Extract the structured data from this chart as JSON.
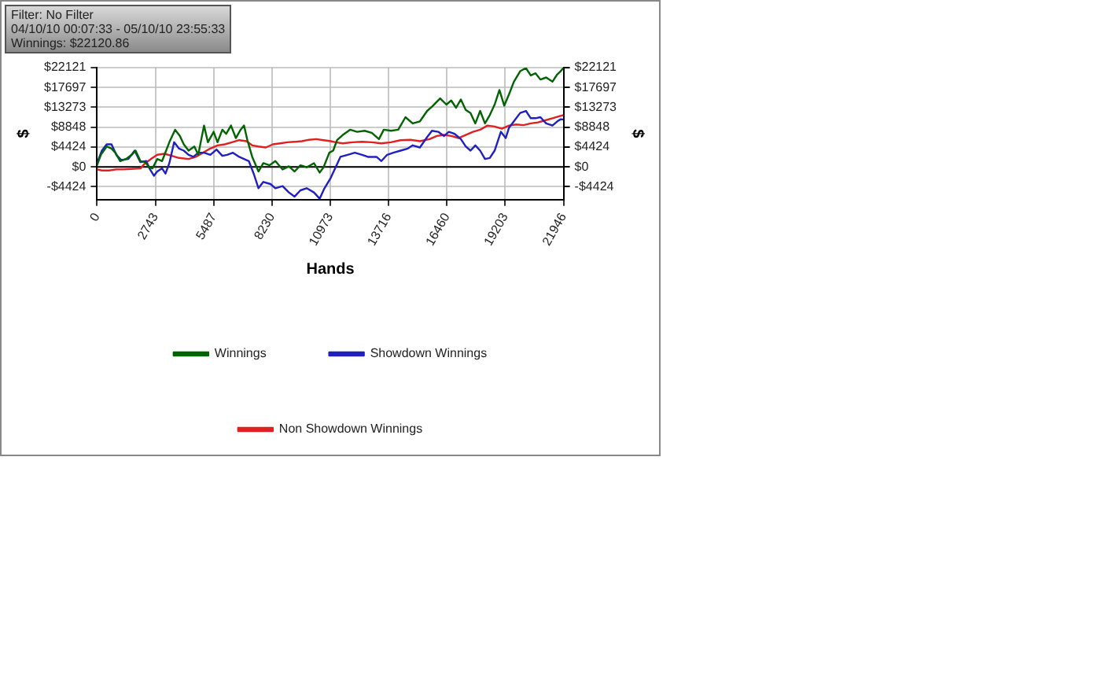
{
  "chart_data": {
    "type": "line",
    "xlabel": "Hands",
    "ylabel": "$",
    "y2label": "$",
    "annotations": [
      "Filter: No Filter",
      "04/10/10 00:07:33 - 05/10/10 23:55:33",
      "Winnings: $22120.86"
    ],
    "xlim": [
      0,
      21946
    ],
    "xticks": [
      0,
      2743,
      5487,
      8230,
      10973,
      13716,
      16460,
      19203,
      21946
    ],
    "ylim": [
      -7300,
      22121
    ],
    "yticks": [
      {
        "value": -4424,
        "label": "-$4424"
      },
      {
        "value": 0,
        "label": "$0"
      },
      {
        "value": 4424,
        "label": "$4424"
      },
      {
        "value": 8848,
        "label": "$8848"
      },
      {
        "value": 13273,
        "label": "$13273"
      },
      {
        "value": 17697,
        "label": "$17697"
      },
      {
        "value": 22121,
        "label": "$22121"
      }
    ],
    "y2lim": [
      -7300,
      22121
    ],
    "y2ticks": [
      {
        "value": -4424,
        "label": "-$4424"
      },
      {
        "value": 0,
        "label": "$0"
      },
      {
        "value": 4424,
        "label": "$4424"
      },
      {
        "value": 8848,
        "label": "$8848"
      },
      {
        "value": 13273,
        "label": "$13273"
      },
      {
        "value": 17697,
        "label": "$17697"
      },
      {
        "value": 22121,
        "label": "$22121"
      }
    ],
    "grid": true,
    "legend": "bottom",
    "marker": "none",
    "line_style": "solid",
    "ref_lines": [
      {
        "axis": "y",
        "value": 0,
        "color": "#000000"
      }
    ],
    "series": [
      {
        "name": "Winnings",
        "color": "#006400",
        "x": [
          0,
          181,
          453,
          680,
          861,
          1088,
          1360,
          1632,
          1814,
          2040,
          2267,
          2448,
          2607,
          2834,
          3060,
          3401,
          3673,
          3899,
          4081,
          4307,
          4579,
          4761,
          5033,
          5214,
          5486,
          5668,
          5894,
          6076,
          6302,
          6529,
          6756,
          6914,
          7073,
          7300,
          7594,
          7821,
          8116,
          8388,
          8728,
          9023,
          9295,
          9567,
          9861,
          10202,
          10474,
          10655,
          10927,
          11108,
          11290,
          11562,
          11902,
          12242,
          12582,
          12922,
          13262,
          13489,
          13829,
          14169,
          14509,
          14849,
          15189,
          15529,
          15756,
          16141,
          16436,
          16662,
          16889,
          17116,
          17343,
          17569,
          17796,
          18023,
          18249,
          18476,
          18703,
          18929,
          19156,
          19383,
          19610,
          19904,
          20176,
          20403,
          20630,
          20856,
          21128,
          21423,
          21650,
          21809,
          21946
        ],
        "values": [
          370,
          2700,
          4560,
          4100,
          3170,
          1300,
          1770,
          2700,
          3630,
          1300,
          1070,
          -90,
          -330,
          1770,
          1300,
          5500,
          8290,
          6890,
          5030,
          3630,
          4560,
          2700,
          9220,
          5500,
          7820,
          5500,
          8290,
          7360,
          9220,
          6430,
          8290,
          9220,
          5960,
          2240,
          -1020,
          840,
          370,
          1300,
          -560,
          140,
          -1020,
          370,
          -90,
          840,
          -1260,
          -90,
          3170,
          3630,
          5960,
          7130,
          8290,
          7820,
          8060,
          7590,
          6190,
          8290,
          8060,
          8290,
          11080,
          9690,
          10150,
          12480,
          13410,
          15270,
          13880,
          14810,
          13180,
          15040,
          12710,
          12020,
          9690,
          12480,
          9690,
          11550,
          13880,
          17140,
          13650,
          16210,
          19000,
          21330,
          22030,
          20400,
          20860,
          19470,
          19930,
          19000,
          20630,
          21330,
          22120
        ]
      },
      {
        "name": "Showdown Winnings",
        "color": "#2020c0",
        "x": [
          0,
          227,
          453,
          680,
          907,
          1134,
          1474,
          1768,
          2040,
          2312,
          2494,
          2675,
          2834,
          3060,
          3219,
          3401,
          3627,
          3854,
          4081,
          4307,
          4534,
          4761,
          5033,
          5327,
          5622,
          5894,
          6121,
          6393,
          6688,
          6914,
          7141,
          7368,
          7594,
          7821,
          8161,
          8388,
          8728,
          9023,
          9295,
          9567,
          9861,
          10202,
          10474,
          10700,
          10995,
          11222,
          11448,
          11788,
          12128,
          12469,
          12741,
          13149,
          13375,
          13647,
          13942,
          14282,
          14622,
          14849,
          15189,
          15529,
          15756,
          16051,
          16323,
          16549,
          16821,
          17116,
          17343,
          17569,
          17796,
          18023,
          18249,
          18476,
          18703,
          18997,
          19224,
          19383,
          19610,
          19904,
          20176,
          20403,
          20630,
          20856,
          21128,
          21423,
          21650,
          21809,
          21946
        ],
        "values": [
          840,
          3630,
          5030,
          5030,
          2700,
          1540,
          1770,
          3630,
          1070,
          1300,
          -560,
          -1960,
          -1020,
          -330,
          -1490,
          840,
          5500,
          4100,
          3630,
          2700,
          2240,
          3170,
          3170,
          2700,
          3870,
          2470,
          2700,
          3170,
          2240,
          1770,
          1300,
          -1490,
          -4750,
          -3350,
          -3820,
          -4750,
          -4280,
          -5680,
          -6610,
          -5220,
          -4750,
          -5680,
          -7080,
          -4750,
          -2420,
          -90,
          2240,
          2700,
          3170,
          2700,
          2240,
          2240,
          1300,
          2700,
          3170,
          3630,
          4100,
          4800,
          4330,
          6660,
          8060,
          7820,
          6890,
          7820,
          7360,
          6190,
          4560,
          3630,
          4800,
          3630,
          1770,
          2000,
          3630,
          7820,
          6430,
          8760,
          10150,
          12020,
          12480,
          10850,
          10850,
          11080,
          9690,
          9220,
          10150,
          10620,
          10570
        ]
      },
      {
        "name": "Non Showdown Winnings",
        "color": "#e02020",
        "x": [
          0,
          227,
          567,
          907,
          1247,
          1587,
          2040,
          2267,
          2539,
          2834,
          3174,
          3514,
          3854,
          4307,
          4647,
          4987,
          5327,
          5668,
          6008,
          6348,
          6688,
          7028,
          7300,
          7594,
          7935,
          8275,
          8615,
          8955,
          9295,
          9635,
          9975,
          10315,
          10655,
          10995,
          11222,
          11562,
          12015,
          12469,
          12922,
          13375,
          13829,
          14282,
          14735,
          15189,
          15642,
          15982,
          16323,
          16662,
          17003,
          17343,
          17683,
          18023,
          18363,
          18703,
          19043,
          19383,
          19723,
          20063,
          20403,
          20743,
          21083,
          21423,
          21763,
          21946
        ],
        "values": [
          -560,
          -790,
          -790,
          -560,
          -560,
          -470,
          -330,
          840,
          1770,
          2700,
          2930,
          2470,
          2000,
          1770,
          2240,
          3170,
          4100,
          4800,
          5030,
          5500,
          5960,
          5730,
          4800,
          4560,
          4330,
          5030,
          5260,
          5500,
          5590,
          5730,
          6050,
          6190,
          5960,
          5730,
          5500,
          5260,
          5500,
          5590,
          5500,
          5260,
          5500,
          5960,
          6050,
          5730,
          6190,
          6890,
          7130,
          6890,
          6430,
          7130,
          7820,
          8290,
          9220,
          8990,
          8520,
          9220,
          9450,
          9310,
          9690,
          9920,
          10380,
          10850,
          11320,
          11550
        ]
      }
    ]
  }
}
